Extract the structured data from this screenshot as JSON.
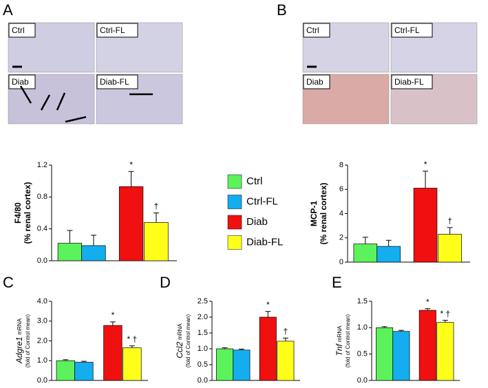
{
  "figure": {
    "panel_letters": [
      "A",
      "B",
      "C",
      "D",
      "E"
    ],
    "micrographs": [
      [
        "Ctrl",
        "Ctrl-FL",
        "Diab",
        "Diab-FL"
      ],
      [
        "Ctrl",
        "Ctrl-FL",
        "Diab",
        "Diab-FL"
      ]
    ]
  },
  "legend": [
    {
      "name": "Ctrl",
      "color": "#5cf25c"
    },
    {
      "name": "Ctrl-FL",
      "color": "#14aef0"
    },
    {
      "name": "Diab",
      "color": "#f01010"
    },
    {
      "name": "Diab-FL",
      "color": "#ffff1a"
    }
  ],
  "chart_data": [
    {
      "type": "bar",
      "ylabel": {
        "lines": [
          "F4/80",
          "(% renal cortex)"
        ]
      },
      "values": [
        0.22,
        0.19,
        0.93,
        0.48
      ],
      "errors": [
        0.16,
        0.13,
        0.19,
        0.12
      ],
      "annotations": [
        null,
        null,
        "*",
        "†"
      ],
      "ylim": [
        0,
        1.2
      ],
      "yticks": [
        {
          "value": 0,
          "label": "0.0"
        },
        0.4,
        0.8,
        1.2
      ]
    },
    {
      "type": "bar",
      "ylabel": {
        "lines": [
          "MCP-1",
          "(% renal cortex)"
        ]
      },
      "values": [
        1.5,
        1.3,
        6.1,
        2.3
      ],
      "errors": [
        0.55,
        0.5,
        1.4,
        0.55
      ],
      "annotations": [
        null,
        null,
        "*",
        "†"
      ],
      "ylim": [
        0,
        8
      ],
      "yticks": [
        0,
        2,
        4,
        6,
        8
      ]
    },
    {
      "type": "bar",
      "ylabel": {
        "gene": "Adgre1",
        "suffix": "mRNA",
        "note": "(fold of Control mean)"
      },
      "values": [
        1.0,
        0.92,
        2.78,
        1.65
      ],
      "errors": [
        0.05,
        0.05,
        0.18,
        0.1
      ],
      "annotations": [
        null,
        null,
        "*",
        "* †"
      ],
      "ylim": [
        0,
        4
      ],
      "yticks": [
        {
          "value": 0,
          "label": "0.0"
        },
        {
          "value": 1,
          "label": "1.0"
        },
        {
          "value": 2,
          "label": "2.0"
        },
        {
          "value": 3,
          "label": "3.0"
        },
        {
          "value": 4,
          "label": "4.0"
        }
      ]
    },
    {
      "type": "bar",
      "ylabel": {
        "gene": "Ccl2",
        "suffix": "mRNA",
        "note": "(fold of Control mean)"
      },
      "values": [
        1.0,
        0.96,
        2.0,
        1.24
      ],
      "errors": [
        0.03,
        0.03,
        0.18,
        0.1
      ],
      "annotations": [
        null,
        null,
        "*",
        "†"
      ],
      "ylim": [
        0,
        2.5
      ],
      "yticks": [
        {
          "value": 0,
          "label": "0.0"
        },
        0.5,
        {
          "value": 1,
          "label": "1.0"
        },
        1.5,
        {
          "value": 2,
          "label": "2.0"
        },
        2.5
      ]
    },
    {
      "type": "bar",
      "ylabel": {
        "gene": "Tnf",
        "suffix": "mRNA",
        "note": "(fold of Control mean)"
      },
      "values": [
        1.0,
        0.93,
        1.33,
        1.1
      ],
      "errors": [
        0.02,
        0.02,
        0.03,
        0.04
      ],
      "annotations": [
        null,
        null,
        "*",
        "* †"
      ],
      "ylim": [
        0,
        1.5
      ],
      "yticks": [
        {
          "value": 0,
          "label": "0.0"
        },
        0.5,
        {
          "value": 1,
          "label": "1.0"
        },
        1.5
      ]
    }
  ]
}
